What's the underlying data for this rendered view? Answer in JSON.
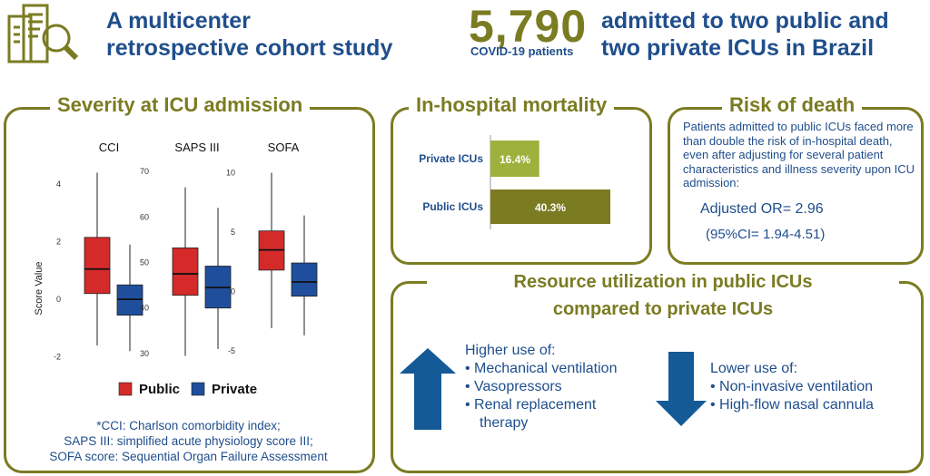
{
  "header": {
    "study_line1": "A multicenter",
    "study_line2": "retrospective cohort study",
    "big_number": "5,790",
    "patients_label": "COVID-19 patients",
    "admit_line1": "admitted to two public and",
    "admit_line2": "two private ICUs in Brazil"
  },
  "severity": {
    "title": "Severity at ICU admission",
    "footnote": [
      "*CCI: Charlson comorbidity index;",
      "SAPS III: simplified acute physiology score III;",
      "SOFA score: Sequential Organ Failure Assessment"
    ]
  },
  "mortality": {
    "title": "In-hospital mortality"
  },
  "risk": {
    "title": "Risk of death",
    "text": "Patients admitted to public ICUs faced more than double the risk of in-hospital death, even after adjusting for several patient characteristics and illness severity upon ICU admission:",
    "or": "Adjusted OR= 2.96",
    "ci": "(95%CI= 1.94-4.51)"
  },
  "resource": {
    "title_line1": "Resource utilization in public ICUs",
    "title_line2": "compared to private ICUs",
    "higher_head": "Higher use of:",
    "higher_items": [
      "• Mechanical ventilation",
      "• Vasopressors",
      "• Renal replacement",
      "therapy"
    ],
    "lower_head": "Lower use of:",
    "lower_items": [
      "• Non-invasive ventilation",
      "• High-flow nasal cannula"
    ]
  },
  "colors": {
    "public": "#d42a2a",
    "private": "#1f4e9c",
    "olive": "#7b7b22",
    "light_olive": "#9db13c",
    "dark_blue": "#1f4e8c",
    "arrow_blue": "#135a96"
  },
  "chart_data": [
    {
      "type": "box",
      "ylabel": "Score Value",
      "legend": [
        "Public",
        "Private"
      ],
      "legend_position": "bottom",
      "panels": [
        {
          "title": "CCI",
          "ylim": [
            -2.2,
            4.6
          ],
          "ticks": [
            -2,
            0,
            2,
            4
          ],
          "groups": [
            {
              "name": "Public",
              "min": -1.6,
              "q1": 0.2,
              "median": 1.05,
              "q3": 2.15,
              "max": 4.4
            },
            {
              "name": "Private",
              "min": -1.8,
              "q1": -0.55,
              "median": 0.0,
              "q3": 0.5,
              "max": 1.9
            }
          ]
        },
        {
          "title": "SAPS III",
          "ylim": [
            28,
            71
          ],
          "ticks": [
            30,
            40,
            50,
            60,
            70
          ],
          "groups": [
            {
              "name": "Public",
              "min": 29.5,
              "q1": 42.8,
              "median": 47.5,
              "q3": 53.2,
              "max": 66.5
            },
            {
              "name": "Private",
              "min": 31,
              "q1": 40,
              "median": 44.5,
              "q3": 49.2,
              "max": 62
            }
          ]
        },
        {
          "title": "SOFA",
          "ylim": [
            -6,
            10.5
          ],
          "ticks": [
            -5,
            0,
            5,
            10
          ],
          "groups": [
            {
              "name": "Public",
              "min": -3.1,
              "q1": 1.8,
              "median": 3.5,
              "q3": 5.1,
              "max": 10
            },
            {
              "name": "Private",
              "min": -3.7,
              "q1": -0.4,
              "median": 0.8,
              "q3": 2.4,
              "max": 6.4
            }
          ]
        }
      ]
    },
    {
      "type": "bar",
      "orientation": "horizontal",
      "title": "In-hospital mortality",
      "categories": [
        "Private ICUs",
        "Public ICUs"
      ],
      "values": [
        16.4,
        40.3
      ],
      "labels": [
        "16.4%",
        "40.3%"
      ],
      "unit": "%"
    }
  ]
}
